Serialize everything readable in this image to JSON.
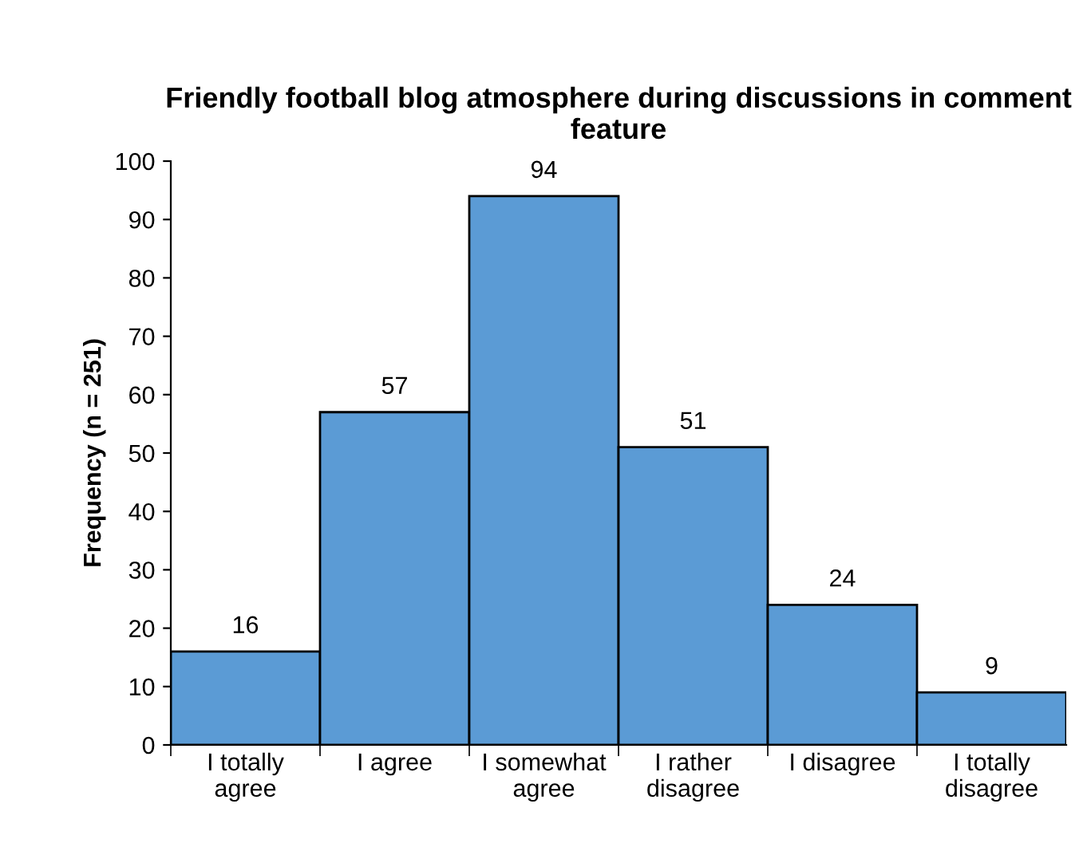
{
  "chart_data": {
    "type": "bar",
    "title": "Friendly football blog atmosphere during discussions in comment feature",
    "ylabel": "Frequency (n = 251)",
    "categories": [
      "I totally\nagree",
      "I agree",
      "I somewhat\nagree",
      "I rather\ndisagree",
      "I disagree",
      "I totally\ndisagree"
    ],
    "values": [
      16,
      57,
      94,
      51,
      24,
      9
    ],
    "color": "#5b9bd5",
    "ylim": [
      0,
      100
    ],
    "yticks": [
      0,
      10,
      20,
      30,
      40,
      50,
      60,
      70,
      80,
      90,
      100
    ],
    "grid": false,
    "data_labels": true,
    "legend": false
  }
}
